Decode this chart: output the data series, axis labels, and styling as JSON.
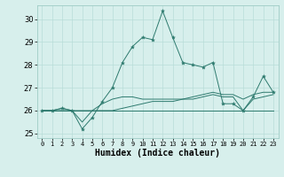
{
  "xlabel": "Humidex (Indice chaleur)",
  "ylabel": "",
  "background_color": "#d7efec",
  "grid_color": "#b8ddd8",
  "line_color": "#2d7a6e",
  "xlim": [
    -0.5,
    23.5
  ],
  "ylim": [
    24.8,
    30.6
  ],
  "yticks": [
    25,
    26,
    27,
    28,
    29,
    30
  ],
  "xticks": [
    0,
    1,
    2,
    3,
    4,
    5,
    6,
    7,
    8,
    9,
    10,
    11,
    12,
    13,
    14,
    15,
    16,
    17,
    18,
    19,
    20,
    21,
    22,
    23
  ],
  "series": [
    [
      26.0,
      26.0,
      26.1,
      26.0,
      25.2,
      25.7,
      26.4,
      27.0,
      28.1,
      28.8,
      29.2,
      29.1,
      30.35,
      29.2,
      28.1,
      28.0,
      27.9,
      28.1,
      26.3,
      26.3,
      26.0,
      26.6,
      27.5,
      26.8
    ],
    [
      26.0,
      26.0,
      26.1,
      26.0,
      25.5,
      26.0,
      26.3,
      26.5,
      26.6,
      26.6,
      26.5,
      26.5,
      26.5,
      26.5,
      26.5,
      26.6,
      26.7,
      26.8,
      26.7,
      26.7,
      26.5,
      26.7,
      26.8,
      26.8
    ],
    [
      26.0,
      26.0,
      26.0,
      26.0,
      26.0,
      26.0,
      26.0,
      26.0,
      26.1,
      26.2,
      26.3,
      26.4,
      26.4,
      26.4,
      26.5,
      26.5,
      26.6,
      26.7,
      26.6,
      26.6,
      26.0,
      26.5,
      26.6,
      26.7
    ],
    [
      26.0,
      26.0,
      26.0,
      26.0,
      26.0,
      26.0,
      26.0,
      26.0,
      26.0,
      26.0,
      26.0,
      26.0,
      26.0,
      26.0,
      26.0,
      26.0,
      26.0,
      26.0,
      26.0,
      26.0,
      26.0,
      26.0,
      26.0,
      26.0
    ]
  ]
}
